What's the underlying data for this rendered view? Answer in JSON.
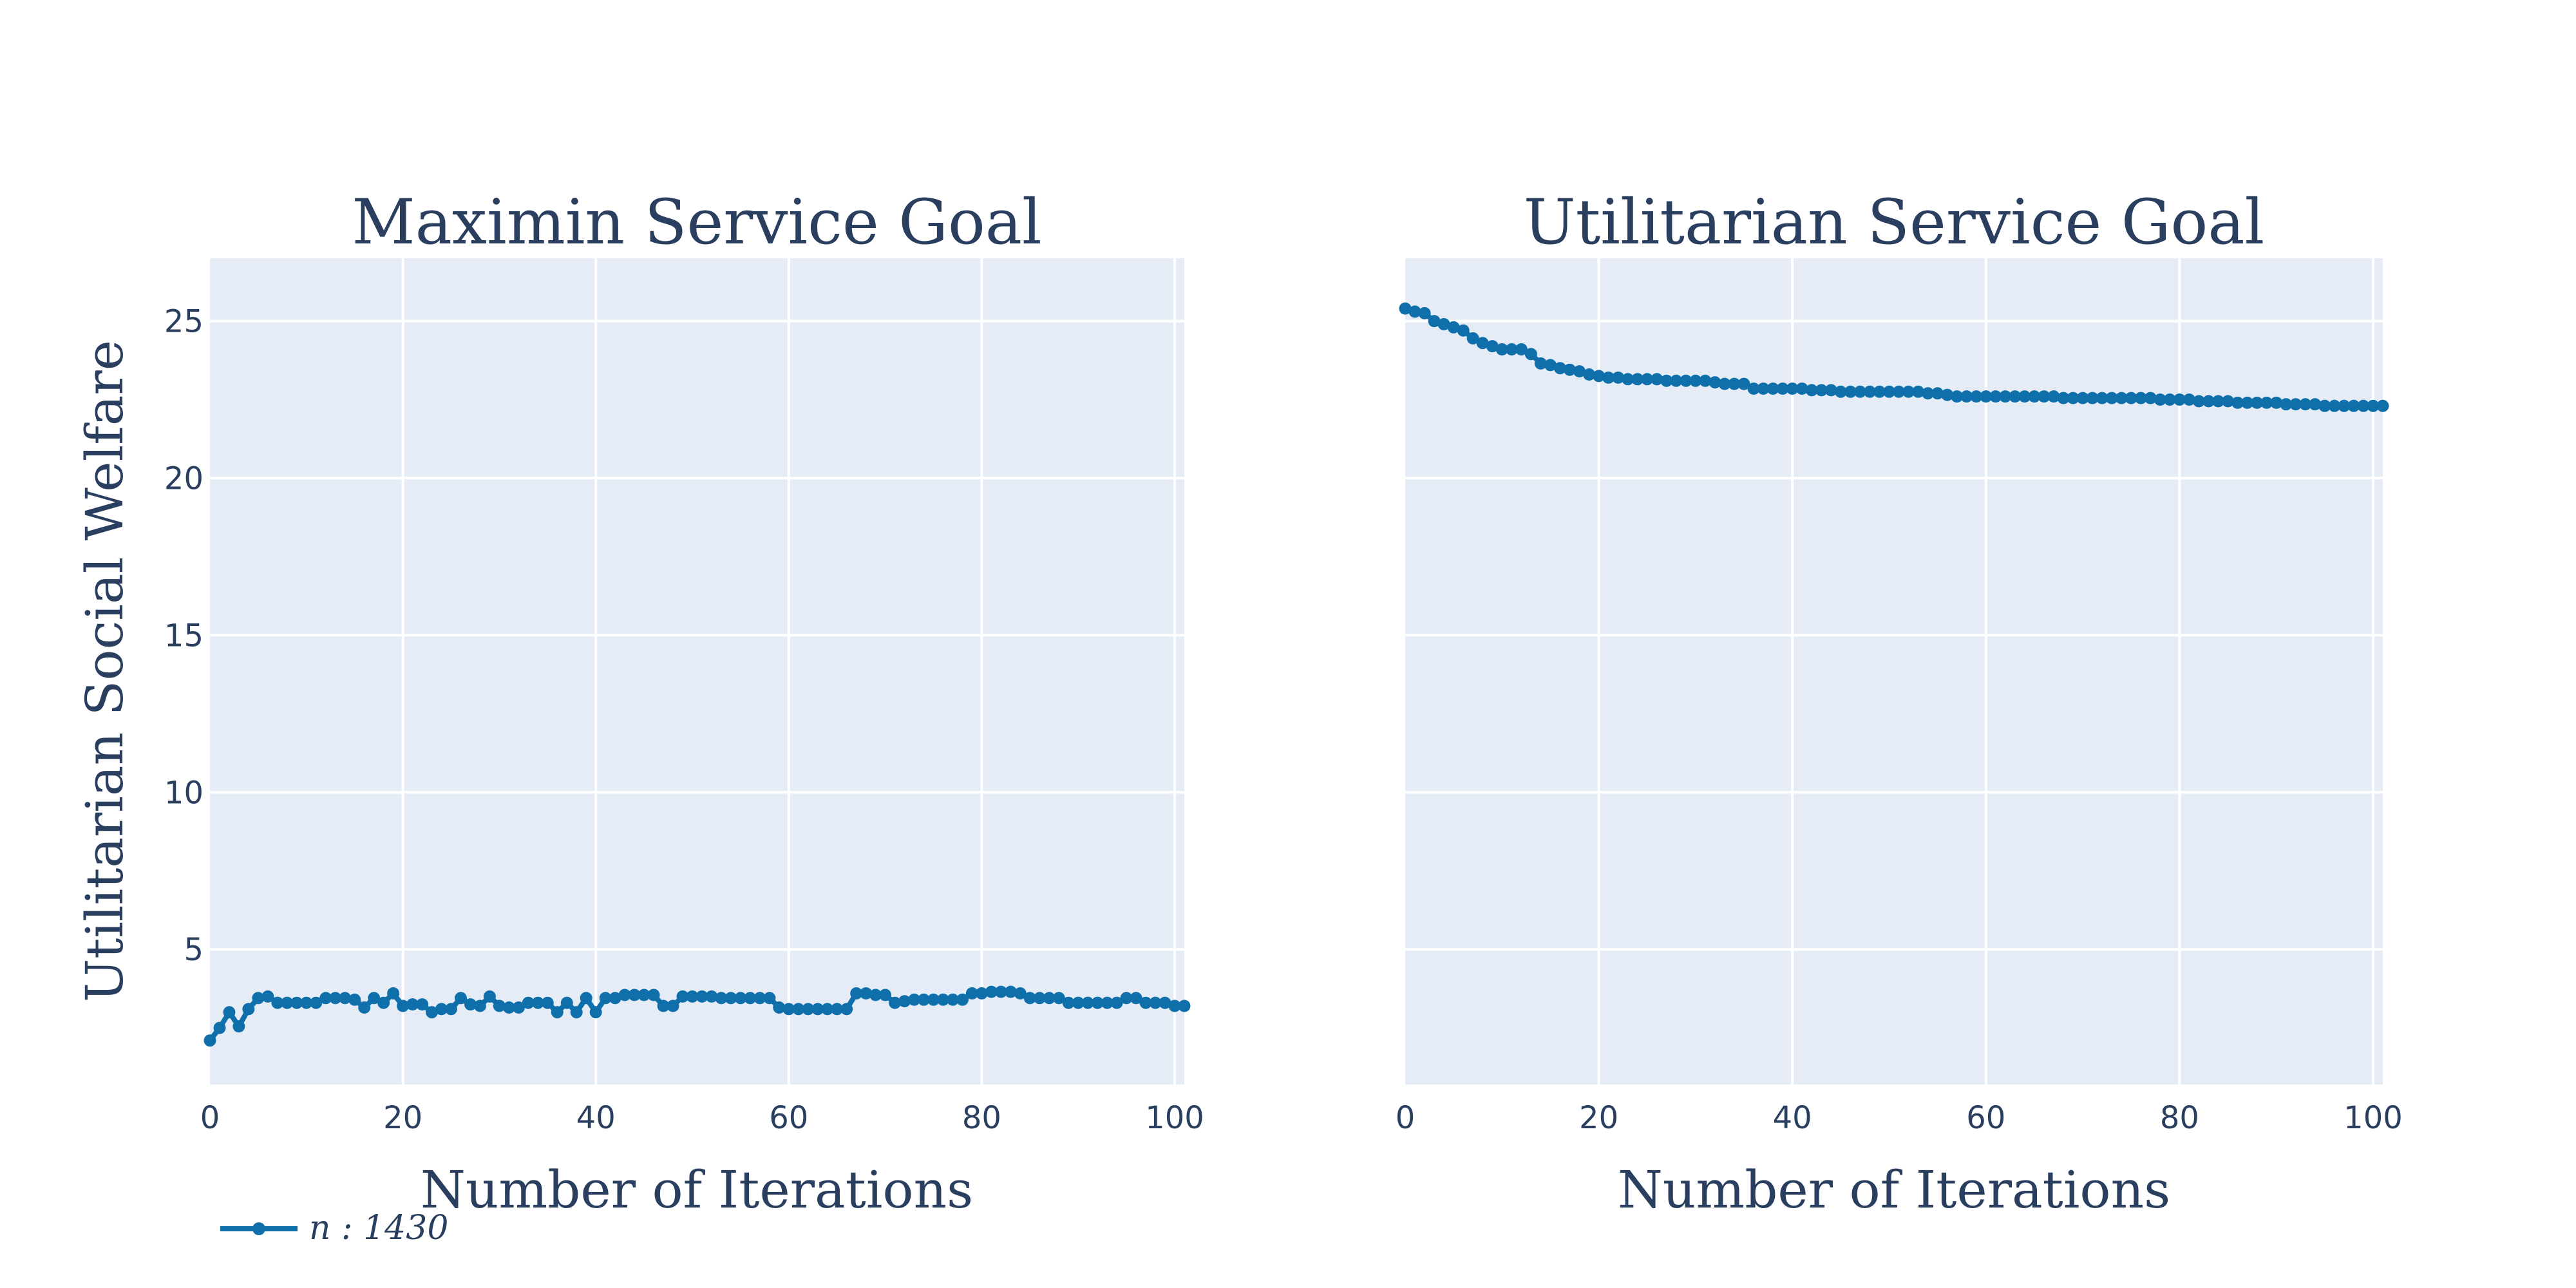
{
  "chart_data": [
    {
      "type": "line",
      "title": "Maximin Service Goal",
      "xlabel": "Number of Iterations",
      "ylabel": "Utilitarian Social Welfare",
      "xlim": [
        0,
        101
      ],
      "ylim": [
        0.7,
        27
      ],
      "xticks": [
        0,
        20,
        40,
        60,
        80,
        100
      ],
      "yticks": [
        5,
        10,
        15,
        20,
        25
      ],
      "grid": true,
      "series": [
        {
          "name": "n : 1430",
          "x": [
            0,
            1,
            2,
            3,
            4,
            5,
            6,
            7,
            8,
            9,
            10,
            11,
            12,
            13,
            14,
            15,
            16,
            17,
            18,
            19,
            20,
            21,
            22,
            23,
            24,
            25,
            26,
            27,
            28,
            29,
            30,
            31,
            32,
            33,
            34,
            35,
            36,
            37,
            38,
            39,
            40,
            41,
            42,
            43,
            44,
            45,
            46,
            47,
            48,
            49,
            50,
            51,
            52,
            53,
            54,
            55,
            56,
            57,
            58,
            59,
            60,
            61,
            62,
            63,
            64,
            65,
            66,
            67,
            68,
            69,
            70,
            71,
            72,
            73,
            74,
            75,
            76,
            77,
            78,
            79,
            80,
            81,
            82,
            83,
            84,
            85,
            86,
            87,
            88,
            89,
            90,
            91,
            92,
            93,
            94,
            95,
            96,
            97,
            98,
            99,
            100,
            101
          ],
          "values": [
            2.1,
            2.5,
            3.0,
            2.55,
            3.1,
            3.45,
            3.5,
            3.3,
            3.3,
            3.3,
            3.3,
            3.3,
            3.45,
            3.45,
            3.45,
            3.4,
            3.15,
            3.45,
            3.3,
            3.6,
            3.2,
            3.25,
            3.25,
            3.0,
            3.1,
            3.1,
            3.45,
            3.25,
            3.2,
            3.5,
            3.2,
            3.15,
            3.15,
            3.3,
            3.3,
            3.3,
            3.0,
            3.3,
            3.0,
            3.45,
            3.0,
            3.45,
            3.45,
            3.55,
            3.55,
            3.55,
            3.55,
            3.2,
            3.2,
            3.5,
            3.5,
            3.5,
            3.5,
            3.45,
            3.45,
            3.45,
            3.45,
            3.45,
            3.45,
            3.15,
            3.1,
            3.1,
            3.1,
            3.1,
            3.1,
            3.1,
            3.1,
            3.6,
            3.6,
            3.55,
            3.55,
            3.3,
            3.35,
            3.4,
            3.4,
            3.4,
            3.4,
            3.4,
            3.4,
            3.6,
            3.6,
            3.65,
            3.65,
            3.65,
            3.6,
            3.45,
            3.45,
            3.45,
            3.45,
            3.3,
            3.3,
            3.3,
            3.3,
            3.3,
            3.3,
            3.45,
            3.45,
            3.3,
            3.3,
            3.3,
            3.2,
            3.2
          ]
        }
      ]
    },
    {
      "type": "line",
      "title": "Utilitarian Service Goal",
      "xlabel": "Number of Iterations",
      "ylabel": "",
      "xlim": [
        0,
        101
      ],
      "ylim": [
        0.7,
        27
      ],
      "xticks": [
        0,
        20,
        40,
        60,
        80,
        100
      ],
      "yticks": [
        5,
        10,
        15,
        20,
        25
      ],
      "grid": true,
      "series": [
        {
          "name": "n : 1430",
          "x": [
            0,
            1,
            2,
            3,
            4,
            5,
            6,
            7,
            8,
            9,
            10,
            11,
            12,
            13,
            14,
            15,
            16,
            17,
            18,
            19,
            20,
            21,
            22,
            23,
            24,
            25,
            26,
            27,
            28,
            29,
            30,
            31,
            32,
            33,
            34,
            35,
            36,
            37,
            38,
            39,
            40,
            41,
            42,
            43,
            44,
            45,
            46,
            47,
            48,
            49,
            50,
            51,
            52,
            53,
            54,
            55,
            56,
            57,
            58,
            59,
            60,
            61,
            62,
            63,
            64,
            65,
            66,
            67,
            68,
            69,
            70,
            71,
            72,
            73,
            74,
            75,
            76,
            77,
            78,
            79,
            80,
            81,
            82,
            83,
            84,
            85,
            86,
            87,
            88,
            89,
            90,
            91,
            92,
            93,
            94,
            95,
            96,
            97,
            98,
            99,
            100,
            101
          ],
          "values": [
            25.4,
            25.3,
            25.25,
            25.0,
            24.9,
            24.8,
            24.7,
            24.45,
            24.3,
            24.2,
            24.1,
            24.1,
            24.1,
            23.95,
            23.65,
            23.6,
            23.5,
            23.45,
            23.4,
            23.3,
            23.25,
            23.2,
            23.2,
            23.15,
            23.15,
            23.15,
            23.15,
            23.1,
            23.1,
            23.1,
            23.1,
            23.1,
            23.05,
            23.0,
            23.0,
            23.0,
            22.85,
            22.85,
            22.85,
            22.85,
            22.85,
            22.85,
            22.8,
            22.8,
            22.8,
            22.75,
            22.75,
            22.75,
            22.75,
            22.75,
            22.75,
            22.75,
            22.75,
            22.75,
            22.7,
            22.7,
            22.65,
            22.6,
            22.6,
            22.6,
            22.6,
            22.6,
            22.6,
            22.6,
            22.6,
            22.6,
            22.6,
            22.6,
            22.55,
            22.55,
            22.55,
            22.55,
            22.55,
            22.55,
            22.55,
            22.55,
            22.55,
            22.55,
            22.5,
            22.5,
            22.5,
            22.5,
            22.45,
            22.45,
            22.45,
            22.45,
            22.4,
            22.4,
            22.4,
            22.4,
            22.4,
            22.35,
            22.35,
            22.35,
            22.35,
            22.3,
            22.3,
            22.3,
            22.3,
            22.3,
            22.3,
            22.3
          ]
        }
      ]
    }
  ],
  "legend": {
    "placement": "bottom-left",
    "label": "n : 1430"
  },
  "colors": {
    "line": "#0f6fab",
    "plot_bg": "#e5ecf6",
    "grid": "#ffffff",
    "text": "#2a3f5f"
  }
}
